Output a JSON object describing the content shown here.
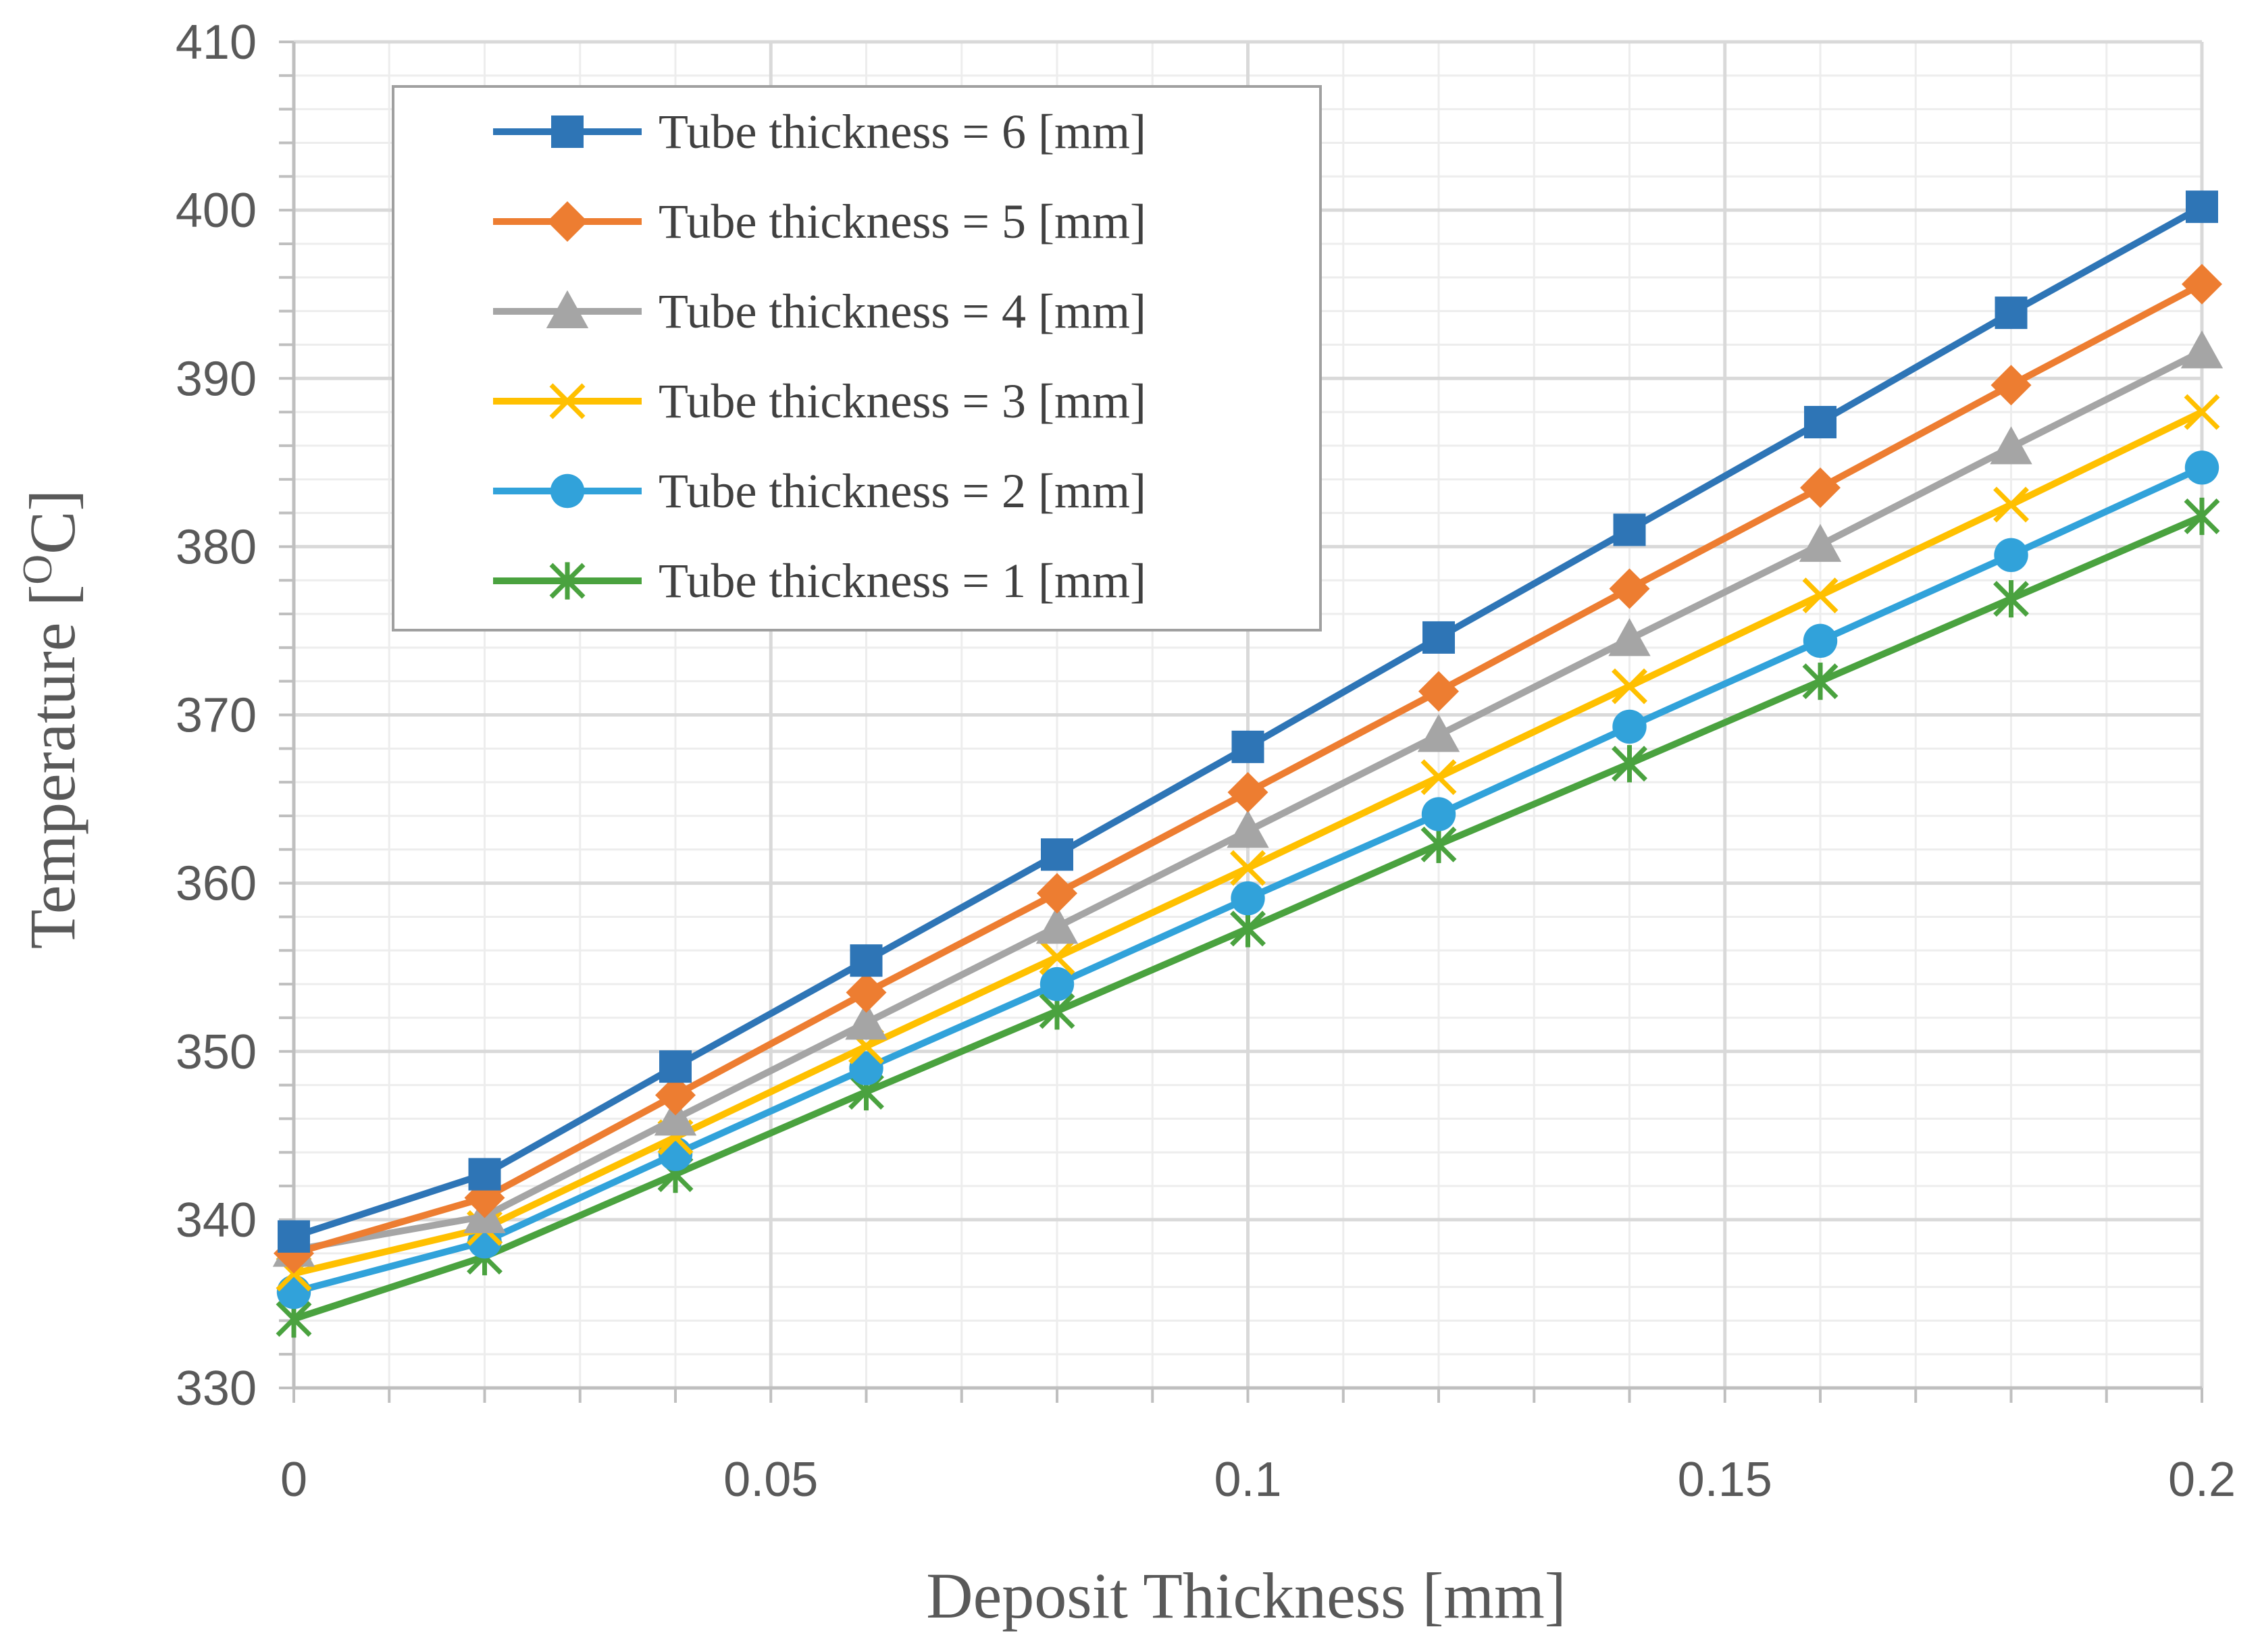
{
  "chart_data": {
    "type": "line",
    "title": "",
    "xlabel": "Deposit Thickness [mm]",
    "ylabel_main": "Temperature [",
    "ylabel_sup": "O",
    "ylabel_end": "C]",
    "xlim": [
      0,
      0.2
    ],
    "ylim": [
      330,
      410
    ],
    "x_ticks": [
      0,
      0.05,
      0.1,
      0.15,
      0.2
    ],
    "x_tick_labels": [
      "0",
      "0.05",
      "0.1",
      "0.15",
      "0.2"
    ],
    "y_ticks": [
      330,
      340,
      350,
      360,
      370,
      380,
      390,
      400,
      410
    ],
    "y_tick_labels": [
      "330",
      "340",
      "350",
      "360",
      "370",
      "380",
      "390",
      "400",
      "410"
    ],
    "x_minor_step": 0.01,
    "y_minor_step": 2,
    "grid": true,
    "legend_position": "top-left",
    "x": [
      0,
      0.02,
      0.04,
      0.06,
      0.08,
      0.1,
      0.12,
      0.14,
      0.16,
      0.18,
      0.2
    ],
    "series": [
      {
        "name": "Tube thickness = 6 [mm]",
        "color": "#2E75B6",
        "marker": "square",
        "values": [
          339.0,
          342.7,
          349.1,
          355.4,
          361.7,
          368.1,
          374.6,
          381.0,
          387.4,
          393.9,
          400.2
        ]
      },
      {
        "name": "Tube thickness = 5 [mm]",
        "color": "#ED7D31",
        "marker": "diamond",
        "values": [
          338.0,
          341.3,
          347.4,
          353.5,
          359.4,
          365.4,
          371.4,
          377.5,
          383.5,
          389.6,
          395.6
        ]
      },
      {
        "name": "Tube thickness = 4 [mm]",
        "color": "#A5A5A5",
        "marker": "triangle",
        "values": [
          338.2,
          340.2,
          346.0,
          351.7,
          357.4,
          363.1,
          368.8,
          374.5,
          380.1,
          385.9,
          391.6
        ]
      },
      {
        "name": "Tube thickness = 3 [mm]",
        "color": "#FFC000",
        "marker": "x",
        "values": [
          336.8,
          339.5,
          344.9,
          350.3,
          355.6,
          360.9,
          366.3,
          371.7,
          377.1,
          382.5,
          388.0
        ]
      },
      {
        "name": "Tube thickness = 2 [mm]",
        "color": "#31A2DA",
        "marker": "circle",
        "values": [
          335.7,
          338.7,
          343.9,
          349.0,
          354.0,
          359.1,
          364.1,
          369.3,
          374.4,
          379.5,
          384.7
        ]
      },
      {
        "name": "Tube thickness = 1 [mm]",
        "color": "#4AA23F",
        "marker": "star",
        "values": [
          334.1,
          337.8,
          342.7,
          347.6,
          352.4,
          357.3,
          362.3,
          367.1,
          372.0,
          376.9,
          381.8
        ]
      }
    ]
  }
}
